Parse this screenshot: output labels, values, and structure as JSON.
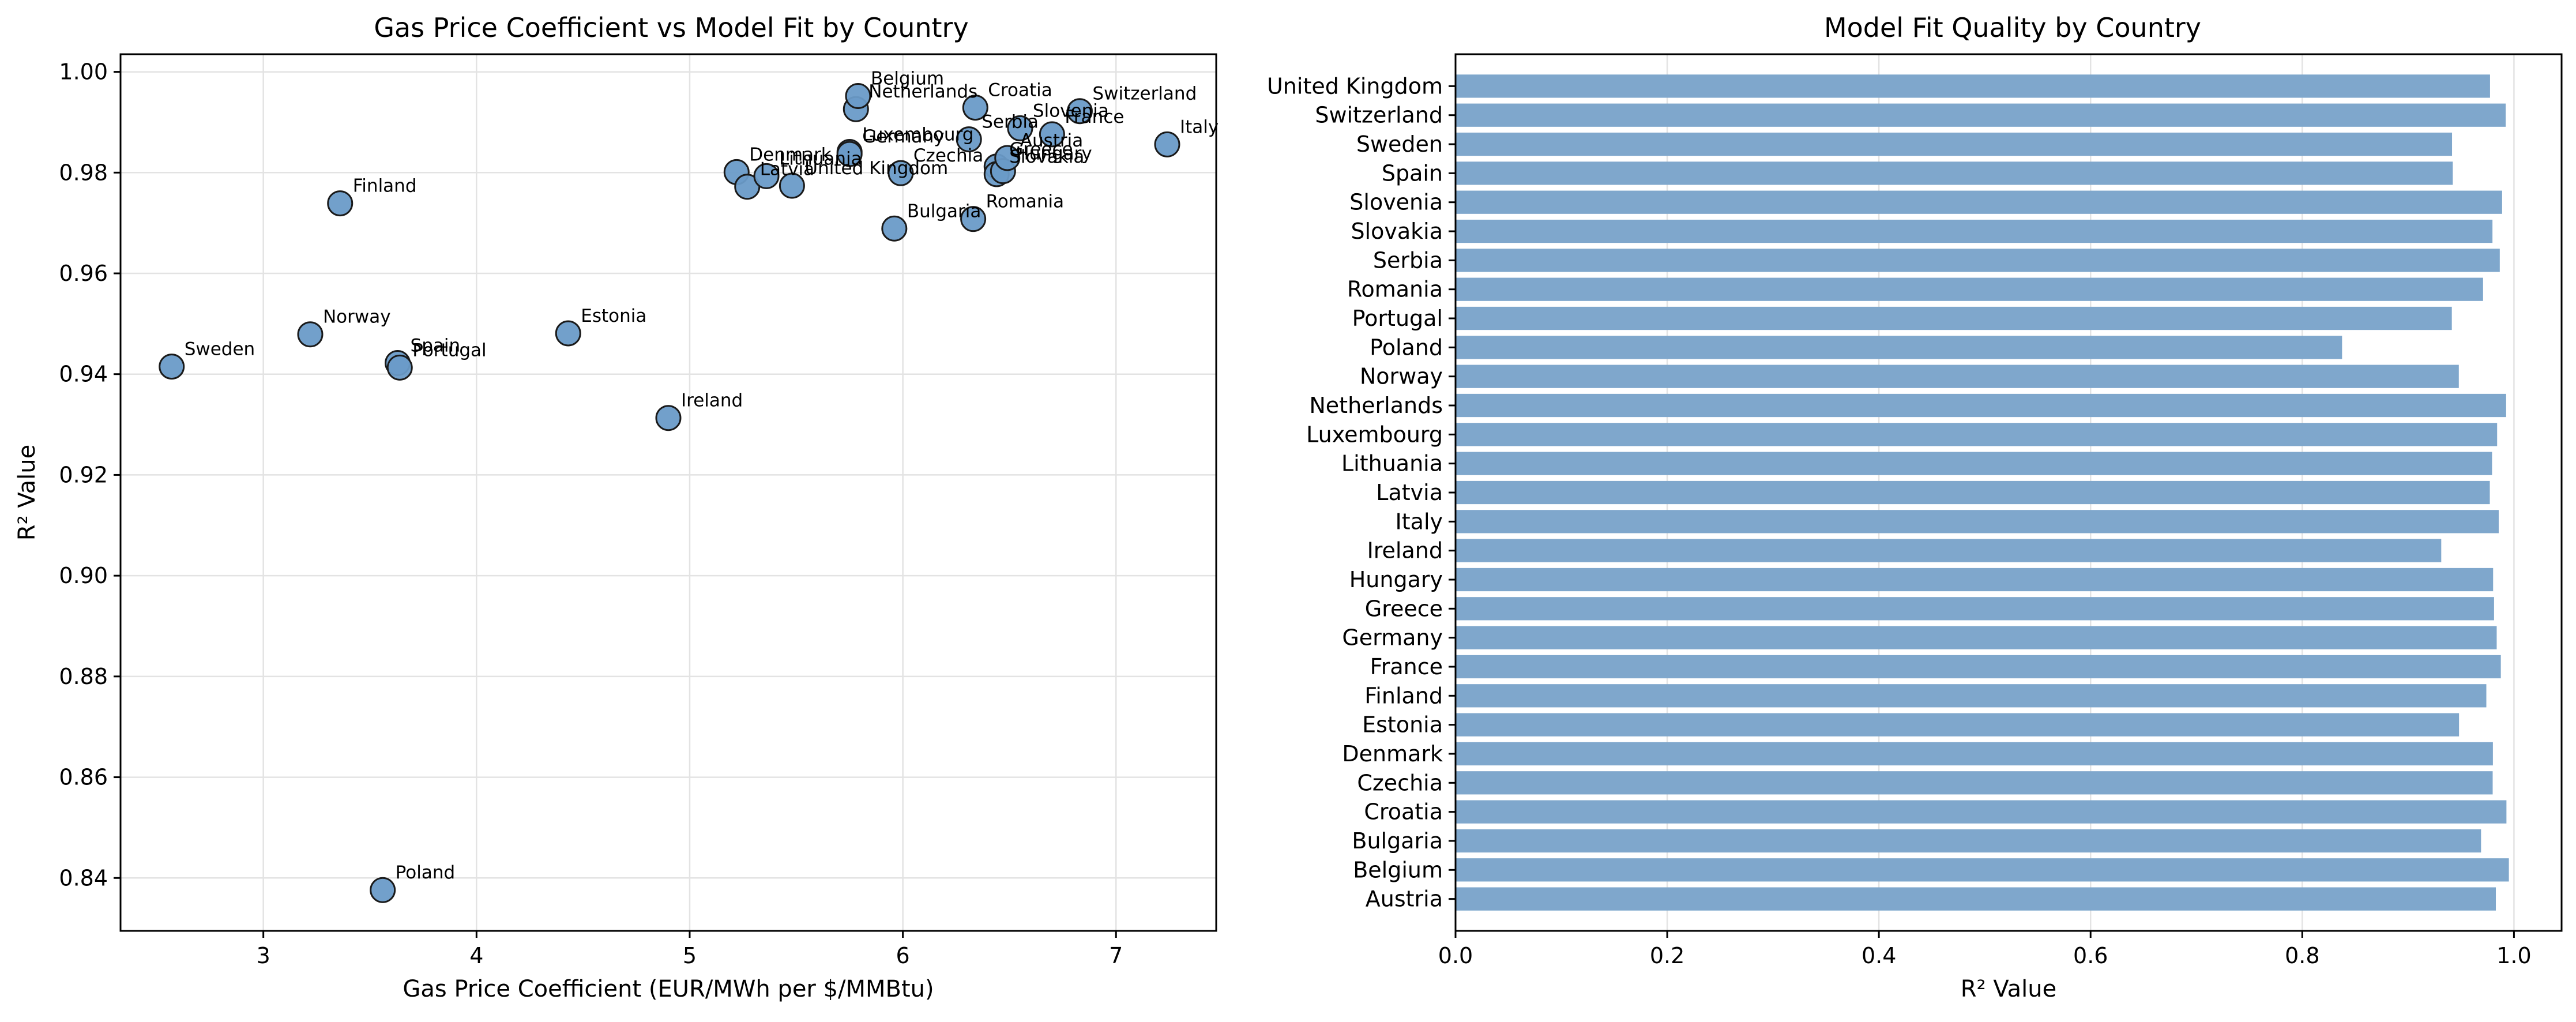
{
  "colors": {
    "marker_fill": "#6a9bc8",
    "marker_edge": "#1a1a1a",
    "bar": "#7fa7cc",
    "grid": "#e3e3e3"
  },
  "chart_data": [
    {
      "type": "scatter",
      "title": "Gas Price Coefficient vs Model Fit by Country",
      "xlabel": "Gas Price Coefficient (EUR/MWh per $/MMBtu)",
      "ylabel": "R² Value",
      "xlim": [
        2.33,
        7.47
      ],
      "ylim": [
        0.8295,
        1.0035
      ],
      "xticks": [
        3,
        4,
        5,
        6,
        7
      ],
      "xtick_labels": [
        "3",
        "4",
        "5",
        "6",
        "7"
      ],
      "yticks": [
        0.84,
        0.86,
        0.88,
        0.9,
        0.92,
        0.94,
        0.96,
        0.98,
        1.0
      ],
      "ytick_labels": [
        "0.84",
        "0.86",
        "0.88",
        "0.90",
        "0.92",
        "0.94",
        "0.96",
        "0.98",
        "1.00"
      ],
      "grid": true,
      "points": [
        {
          "label": "Sweden",
          "x": 2.57,
          "y": 0.9415
        },
        {
          "label": "Norway",
          "x": 3.22,
          "y": 0.9479
        },
        {
          "label": "Finland",
          "x": 3.36,
          "y": 0.9739
        },
        {
          "label": "Poland",
          "x": 3.56,
          "y": 0.8376
        },
        {
          "label": "Spain",
          "x": 3.63,
          "y": 0.9422
        },
        {
          "label": "Portugal",
          "x": 3.64,
          "y": 0.9413
        },
        {
          "label": "Estonia",
          "x": 4.43,
          "y": 0.9481
        },
        {
          "label": "Ireland",
          "x": 4.9,
          "y": 0.9313
        },
        {
          "label": "Denmark",
          "x": 5.22,
          "y": 0.9801
        },
        {
          "label": "Latvia",
          "x": 5.27,
          "y": 0.9772
        },
        {
          "label": "Lithuania",
          "x": 5.36,
          "y": 0.9793
        },
        {
          "label": "United Kingdom",
          "x": 5.48,
          "y": 0.9774
        },
        {
          "label": "Luxembourg",
          "x": 5.75,
          "y": 0.9841
        },
        {
          "label": "Germany",
          "x": 5.75,
          "y": 0.9837
        },
        {
          "label": "Netherlands",
          "x": 5.78,
          "y": 0.9926
        },
        {
          "label": "Belgium",
          "x": 5.79,
          "y": 0.9952
        },
        {
          "label": "Bulgaria",
          "x": 5.96,
          "y": 0.9689
        },
        {
          "label": "Czechia",
          "x": 5.99,
          "y": 0.9799
        },
        {
          "label": "Serbia",
          "x": 6.31,
          "y": 0.9866
        },
        {
          "label": "Romania",
          "x": 6.33,
          "y": 0.9708
        },
        {
          "label": "Croatia",
          "x": 6.34,
          "y": 0.9929
        },
        {
          "label": "Greece",
          "x": 6.44,
          "y": 0.9812
        },
        {
          "label": "Slovakia",
          "x": 6.44,
          "y": 0.9797
        },
        {
          "label": "Hungary",
          "x": 6.47,
          "y": 0.9803
        },
        {
          "label": "Austria",
          "x": 6.49,
          "y": 0.9829
        },
        {
          "label": "Slovenia",
          "x": 6.55,
          "y": 0.9888
        },
        {
          "label": "France",
          "x": 6.7,
          "y": 0.9876
        },
        {
          "label": "Switzerland",
          "x": 6.83,
          "y": 0.9922
        },
        {
          "label": "Italy",
          "x": 7.24,
          "y": 0.9856
        }
      ]
    },
    {
      "type": "bar",
      "orientation": "horizontal",
      "title": "Model Fit Quality by Country",
      "xlabel": "R² Value",
      "ylabel": "",
      "xlim": [
        0,
        1.045
      ],
      "xticks": [
        0,
        0.2,
        0.4,
        0.6,
        0.8,
        1.0
      ],
      "xtick_labels": [
        "0.0",
        "0.2",
        "0.4",
        "0.6",
        "0.8",
        "1.0"
      ],
      "grid": true,
      "categories": [
        "Austria",
        "Belgium",
        "Bulgaria",
        "Croatia",
        "Czechia",
        "Denmark",
        "Estonia",
        "Finland",
        "France",
        "Germany",
        "Greece",
        "Hungary",
        "Ireland",
        "Italy",
        "Latvia",
        "Lithuania",
        "Luxembourg",
        "Netherlands",
        "Norway",
        "Poland",
        "Portugal",
        "Romania",
        "Serbia",
        "Slovakia",
        "Slovenia",
        "Spain",
        "Sweden",
        "Switzerland",
        "United Kingdom"
      ],
      "values": [
        0.9829,
        0.9952,
        0.9689,
        0.9929,
        0.9799,
        0.9801,
        0.9481,
        0.9739,
        0.9876,
        0.9837,
        0.9812,
        0.9803,
        0.9313,
        0.9856,
        0.9772,
        0.9793,
        0.9841,
        0.9926,
        0.9479,
        0.8376,
        0.9413,
        0.9708,
        0.9866,
        0.9797,
        0.9888,
        0.9422,
        0.9415,
        0.9922,
        0.9774
      ]
    }
  ]
}
